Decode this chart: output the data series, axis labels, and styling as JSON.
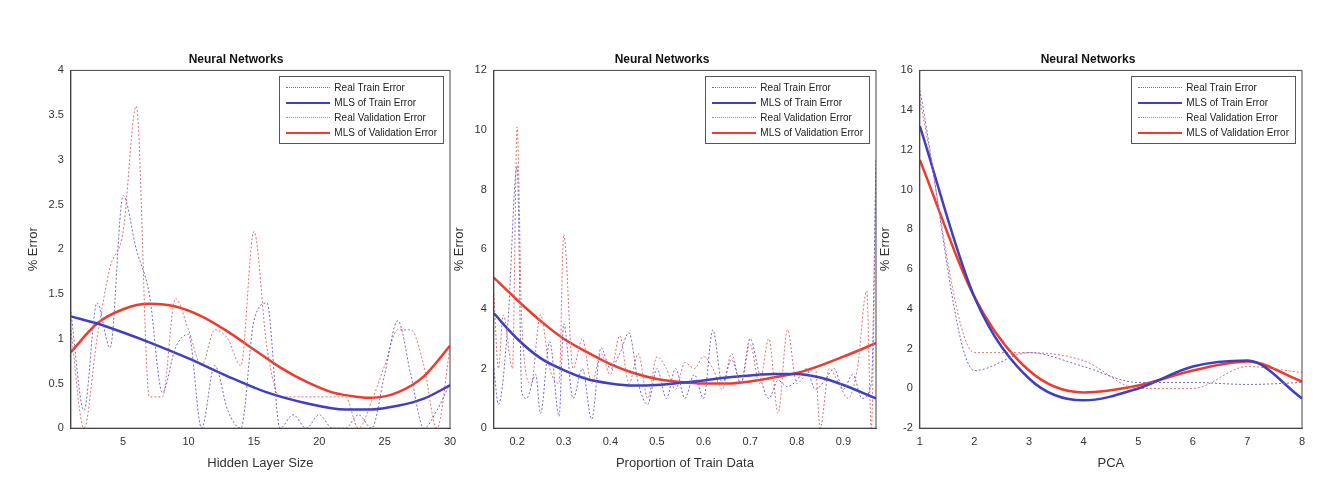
{
  "chart_data": [
    {
      "type": "line",
      "title": "Neural Networks",
      "xlabel": "Hidden Layer Size",
      "ylabel": "% Error",
      "xlim": [
        1,
        30
      ],
      "xticks": [
        5,
        10,
        15,
        20,
        25,
        30
      ],
      "ylim": [
        0,
        4
      ],
      "yticks": [
        0,
        0.5,
        1,
        1.5,
        2,
        2.5,
        3,
        3.5,
        4
      ],
      "grid": false,
      "legend": "top right",
      "marker": "none",
      "series": [
        {
          "name": "Real Train Error",
          "color": "#6a6ad0",
          "line_style": "dotted",
          "x": [
            1,
            2,
            3,
            4,
            5,
            6,
            7,
            8,
            9,
            10,
            11,
            12,
            13,
            14,
            15,
            16,
            17,
            18,
            19,
            20,
            21,
            22,
            23,
            24,
            25,
            26,
            27,
            28,
            29,
            30
          ],
          "values": [
            1.3,
            0.2,
            1.4,
            0.9,
            2.6,
            2.0,
            1.5,
            0.4,
            0.9,
            1.05,
            0,
            0.7,
            0.2,
            0,
            1.2,
            1.4,
            0,
            0.15,
            0,
            0.15,
            0,
            0,
            0.15,
            0,
            0.6,
            1.2,
            0.6,
            0,
            0.2,
            0.5
          ]
        },
        {
          "name": "MLS of Train Error",
          "color": "#3f3fbf",
          "line_style": "solid",
          "x": [
            1,
            3,
            5,
            7,
            10,
            13,
            16,
            19,
            22,
            24,
            26,
            28,
            30
          ],
          "values": [
            1.25,
            1.17,
            1.07,
            0.96,
            0.78,
            0.58,
            0.4,
            0.28,
            0.21,
            0.21,
            0.25,
            0.33,
            0.48
          ]
        },
        {
          "name": "Real Validation Error",
          "color": "#e07070",
          "line_style": "dotted",
          "x": [
            1,
            2,
            3,
            4,
            5,
            6,
            7,
            8,
            9,
            10,
            11,
            12,
            13,
            14,
            15,
            16,
            17,
            18,
            19,
            20,
            21,
            22,
            23,
            24,
            25,
            26,
            27,
            28,
            29,
            30
          ],
          "values": [
            1.1,
            0,
            1.0,
            1.8,
            2.2,
            3.6,
            0.35,
            0.35,
            1.45,
            1.1,
            0.7,
            1.1,
            1.0,
            0.7,
            2.2,
            0.9,
            0.35,
            0.35,
            0.35,
            0.35,
            0.35,
            0.35,
            0,
            0.3,
            0.7,
            1.1,
            1.1,
            0.7,
            0,
            0.9
          ]
        },
        {
          "name": "MLS of Validation Error",
          "color": "#ee3b2b",
          "line_style": "solid",
          "x": [
            1,
            3,
            5,
            7,
            9,
            11,
            13,
            15,
            17,
            19,
            21,
            23,
            24,
            26,
            28,
            30
          ],
          "values": [
            0.85,
            1.17,
            1.33,
            1.39,
            1.36,
            1.25,
            1.08,
            0.88,
            0.68,
            0.52,
            0.4,
            0.35,
            0.34,
            0.4,
            0.58,
            0.92
          ]
        }
      ]
    },
    {
      "type": "line",
      "title": "Neural Networks",
      "xlabel": "Proportion of Train Data",
      "ylabel": "% Error",
      "xlim": [
        0.15,
        0.97
      ],
      "xticks": [
        0.2,
        0.3,
        0.4,
        0.5,
        0.6,
        0.7,
        0.8,
        0.9
      ],
      "ylim": [
        0,
        12
      ],
      "yticks": [
        0,
        2,
        4,
        6,
        8,
        10,
        12
      ],
      "grid": false,
      "legend": "top right",
      "marker": "none",
      "series": [
        {
          "name": "Real Train Error",
          "color": "#6a6ad0",
          "line_style": "dotted",
          "x": [
            0.15,
            0.16,
            0.18,
            0.2,
            0.21,
            0.22,
            0.24,
            0.25,
            0.27,
            0.29,
            0.3,
            0.32,
            0.34,
            0.36,
            0.38,
            0.4,
            0.42,
            0.44,
            0.46,
            0.48,
            0.5,
            0.52,
            0.54,
            0.56,
            0.58,
            0.6,
            0.62,
            0.64,
            0.66,
            0.68,
            0.7,
            0.72,
            0.74,
            0.76,
            0.78,
            0.8,
            0.82,
            0.84,
            0.86,
            0.88,
            0.9,
            0.92,
            0.94,
            0.96,
            0.97
          ],
          "values": [
            2,
            0.8,
            3.5,
            8.8,
            1.2,
            1.0,
            1.8,
            0.5,
            2.9,
            0.4,
            3.5,
            1.0,
            2.0,
            0.3,
            2.7,
            2.0,
            2.5,
            3.2,
            1.5,
            0.8,
            2.0,
            1.0,
            2.0,
            1.0,
            1.8,
            1.0,
            3.3,
            1.5,
            2.3,
            1.5,
            3.0,
            1.8,
            1.0,
            1.6,
            1.4,
            1.6,
            2.0,
            1.3,
            1.6,
            2.0,
            1.3,
            1.8,
            1.0,
            1.5,
            9
          ]
        },
        {
          "name": "MLS of Train Error",
          "color": "#3f3fbf",
          "line_style": "solid",
          "x": [
            0.15,
            0.2,
            0.25,
            0.3,
            0.35,
            0.4,
            0.45,
            0.5,
            0.55,
            0.6,
            0.65,
            0.7,
            0.75,
            0.8,
            0.85,
            0.9,
            0.97
          ],
          "values": [
            3.85,
            3.0,
            2.35,
            1.95,
            1.65,
            1.5,
            1.43,
            1.45,
            1.52,
            1.6,
            1.7,
            1.77,
            1.82,
            1.82,
            1.7,
            1.45,
            1.0
          ]
        },
        {
          "name": "Real Validation Error",
          "color": "#e07070",
          "line_style": "dotted",
          "x": [
            0.15,
            0.16,
            0.17,
            0.19,
            0.2,
            0.21,
            0.23,
            0.25,
            0.27,
            0.29,
            0.3,
            0.32,
            0.34,
            0.36,
            0.38,
            0.4,
            0.42,
            0.44,
            0.46,
            0.48,
            0.5,
            0.52,
            0.54,
            0.56,
            0.58,
            0.6,
            0.62,
            0.64,
            0.66,
            0.68,
            0.7,
            0.72,
            0.74,
            0.76,
            0.78,
            0.8,
            0.82,
            0.84,
            0.85,
            0.87,
            0.89,
            0.91,
            0.93,
            0.95,
            0.96,
            0.97
          ],
          "values": [
            4.5,
            2.0,
            3.8,
            2.0,
            10.1,
            3.5,
            1.5,
            3.8,
            2.0,
            1.5,
            6.5,
            2.0,
            3.0,
            1.5,
            2.5,
            1.8,
            3.1,
            1.5,
            2.5,
            1.0,
            2.4,
            2.0,
            1.3,
            2.2,
            2.0,
            2.4,
            2.0,
            1.3,
            2.5,
            1.5,
            2.8,
            1.5,
            3.0,
            0.5,
            3.3,
            1.5,
            1.8,
            2.0,
            0,
            2.0,
            1.5,
            1.0,
            2.0,
            4.6,
            0,
            9
          ]
        },
        {
          "name": "MLS of Validation Error",
          "color": "#ee3b2b",
          "line_style": "solid",
          "x": [
            0.15,
            0.2,
            0.25,
            0.3,
            0.35,
            0.4,
            0.45,
            0.5,
            0.55,
            0.6,
            0.65,
            0.7,
            0.75,
            0.8,
            0.85,
            0.9,
            0.97
          ],
          "values": [
            5.05,
            4.3,
            3.6,
            3.0,
            2.55,
            2.15,
            1.85,
            1.65,
            1.55,
            1.5,
            1.5,
            1.57,
            1.7,
            1.85,
            2.1,
            2.4,
            2.85
          ]
        }
      ]
    },
    {
      "type": "line",
      "title": "Neural Networks",
      "xlabel": "PCA",
      "ylabel": "% Error",
      "xlim": [
        1,
        8
      ],
      "xticks": [
        1,
        2,
        3,
        4,
        5,
        6,
        7,
        8
      ],
      "ylim": [
        -2,
        16
      ],
      "yticks": [
        -2,
        0,
        2,
        4,
        6,
        8,
        10,
        12,
        14,
        16
      ],
      "grid": false,
      "legend": "top right",
      "marker": "none",
      "series": [
        {
          "name": "Real Train Error",
          "color": "#6a6ad0",
          "line_style": "dotted",
          "x": [
            1,
            2,
            3,
            4,
            5,
            6,
            7,
            8
          ],
          "values": [
            15,
            0.9,
            1.8,
            1.1,
            0.3,
            0.3,
            0.2,
            0.3
          ]
        },
        {
          "name": "MLS of Train Error",
          "color": "#3f3fbf",
          "line_style": "solid",
          "x": [
            1,
            2,
            3,
            4,
            5,
            6,
            7,
            8
          ],
          "values": [
            13.2,
            4.6,
            0.5,
            -0.6,
            0,
            1.1,
            1.4,
            -0.5
          ]
        },
        {
          "name": "Real Validation Error",
          "color": "#e07070",
          "line_style": "dotted",
          "x": [
            1,
            2,
            3,
            4,
            5,
            6,
            7,
            8
          ],
          "values": [
            14.5,
            1.8,
            1.8,
            1.4,
            0,
            0,
            1.1,
            0.8
          ]
        },
        {
          "name": "MLS of Validation Error",
          "color": "#ee3b2b",
          "line_style": "solid",
          "x": [
            1,
            2,
            3,
            4,
            5,
            6,
            7,
            8
          ],
          "values": [
            11.5,
            4.6,
            0.9,
            -0.2,
            0.15,
            0.9,
            1.35,
            0.35
          ]
        }
      ]
    }
  ]
}
